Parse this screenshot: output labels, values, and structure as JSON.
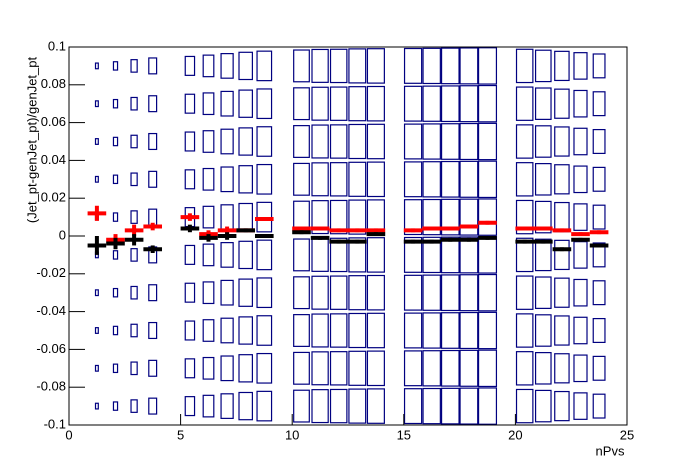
{
  "chart_data": {
    "type": "box-histogram",
    "xlabel": "nPvs",
    "ylabel": "(Jet_pt-genJet_pt)/genJet_pt",
    "xlim": [
      0,
      25
    ],
    "ylim": [
      -0.1,
      0.1
    ],
    "xticks": [
      0,
      5,
      10,
      15,
      20,
      25
    ],
    "yticks": [
      -0.1,
      -0.08,
      -0.06,
      -0.04,
      -0.02,
      0,
      0.02,
      0.04,
      0.06,
      0.08,
      0.1
    ],
    "box_color": "#000080",
    "xbins": [
      0,
      0.833,
      1.667,
      2.5,
      3.333,
      4.167,
      5,
      5.833,
      6.667,
      7.5,
      8.333,
      9.167,
      10,
      10.833,
      11.667,
      12.5,
      13.333,
      14.167,
      15,
      15.833,
      16.667,
      17.5,
      18.333,
      19.167,
      20,
      20.833,
      21.667,
      22.5,
      23.333,
      24.167,
      25
    ],
    "ybins": [
      -0.1,
      -0.08,
      -0.06,
      -0.04,
      -0.02,
      0,
      0.02,
      0.04,
      0.06,
      0.08,
      0.1
    ],
    "z": [
      [
        0,
        0.15,
        0.22,
        0.33,
        0.42,
        0,
        0.5,
        0.57,
        0.65,
        0.72,
        0.78,
        0,
        0.84,
        0.87,
        0.88,
        0.9,
        0.91,
        0,
        0.92,
        0.93,
        0.94,
        0.95,
        0.96,
        0,
        0.88,
        0.83,
        0.77,
        0.7,
        0.63,
        0
      ],
      [
        0,
        0.15,
        0.22,
        0.33,
        0.42,
        0,
        0.5,
        0.57,
        0.65,
        0.72,
        0.78,
        0,
        0.84,
        0.87,
        0.88,
        0.9,
        0.91,
        0,
        0.92,
        0.93,
        0.94,
        0.95,
        0.96,
        0,
        0.88,
        0.83,
        0.77,
        0.7,
        0.63,
        0
      ],
      [
        0,
        0.15,
        0.22,
        0.33,
        0.42,
        0,
        0.5,
        0.57,
        0.65,
        0.72,
        0.78,
        0,
        0.84,
        0.87,
        0.88,
        0.9,
        0.91,
        0,
        0.92,
        0.93,
        0.94,
        0.95,
        0.96,
        0,
        0.88,
        0.83,
        0.77,
        0.7,
        0.63,
        0
      ],
      [
        0,
        0.15,
        0.22,
        0.33,
        0.42,
        0,
        0.5,
        0.57,
        0.65,
        0.72,
        0.78,
        0,
        0.84,
        0.87,
        0.88,
        0.9,
        0.91,
        0,
        0.92,
        0.93,
        0.94,
        0.95,
        0.96,
        0,
        0.88,
        0.83,
        0.77,
        0.7,
        0.63,
        0
      ],
      [
        0,
        0.15,
        0.22,
        0.33,
        0.42,
        0,
        0.5,
        0.57,
        0.65,
        0.72,
        0.78,
        0,
        0.84,
        0.87,
        0.88,
        0.9,
        0.91,
        0,
        0.92,
        0.93,
        0.94,
        0.95,
        0.96,
        0,
        0.88,
        0.83,
        0.77,
        0.7,
        0.63,
        0
      ],
      [
        0,
        0.15,
        0.22,
        0.33,
        0.42,
        0,
        0.5,
        0.57,
        0.65,
        0.72,
        0.78,
        0,
        0.84,
        0.87,
        0.88,
        0.9,
        0.91,
        0,
        0.92,
        0.93,
        0.94,
        0.95,
        0.96,
        0,
        0.88,
        0.83,
        0.77,
        0.7,
        0.63,
        0
      ],
      [
        0,
        0.15,
        0.22,
        0.33,
        0.42,
        0,
        0.5,
        0.57,
        0.65,
        0.72,
        0.78,
        0,
        0.84,
        0.87,
        0.88,
        0.9,
        0.91,
        0,
        0.92,
        0.93,
        0.94,
        0.95,
        0.96,
        0,
        0.88,
        0.83,
        0.77,
        0.7,
        0.63,
        0
      ],
      [
        0,
        0.15,
        0.22,
        0.33,
        0.42,
        0,
        0.5,
        0.57,
        0.65,
        0.72,
        0.78,
        0,
        0.84,
        0.87,
        0.88,
        0.9,
        0.91,
        0,
        0.92,
        0.93,
        0.94,
        0.95,
        0.96,
        0,
        0.88,
        0.83,
        0.77,
        0.7,
        0.63,
        0
      ],
      [
        0,
        0.15,
        0.22,
        0.33,
        0.42,
        0,
        0.5,
        0.57,
        0.65,
        0.72,
        0.78,
        0,
        0.84,
        0.87,
        0.88,
        0.9,
        0.91,
        0,
        0.92,
        0.93,
        0.94,
        0.95,
        0.96,
        0,
        0.88,
        0.83,
        0.77,
        0.7,
        0.63,
        0
      ],
      [
        0,
        0.15,
        0.22,
        0.33,
        0.42,
        0,
        0.5,
        0.57,
        0.65,
        0.72,
        0.78,
        0,
        0.84,
        0.87,
        0.88,
        0.9,
        0.91,
        0,
        0.92,
        0.93,
        0.94,
        0.95,
        0.96,
        0,
        0.88,
        0.83,
        0.77,
        0.7,
        0.63,
        0
      ]
    ],
    "xerr": 0.417,
    "x": [
      1.25,
      2.083,
      2.917,
      3.75,
      5.417,
      6.25,
      7.083,
      7.917,
      8.75,
      10.417,
      11.25,
      12.083,
      12.917,
      13.75,
      15.417,
      16.25,
      17.083,
      17.917,
      18.75,
      20.417,
      21.25,
      22.083,
      22.917,
      23.75
    ],
    "series": [
      {
        "color": "#ff0000",
        "values": [
          0.012,
          -0.002,
          0.003,
          0.005,
          0.01,
          0.001,
          0.003,
          0.003,
          0.009,
          0.004,
          0.004,
          0.003,
          0.003,
          0.003,
          0.003,
          0.004,
          0.004,
          0.005,
          0.007,
          0.004,
          0.004,
          0.003,
          0.001,
          0.002
        ],
        "errors": [
          0.004,
          0.003,
          0.003,
          0.002,
          0.002,
          0.002,
          0.002,
          0.001,
          0.001,
          0.001,
          0.001,
          0.001,
          0.001,
          0.001,
          0.001,
          0.001,
          0.001,
          0.001,
          0.001,
          0.001,
          0.001,
          0.001,
          0.001,
          0.001
        ]
      },
      {
        "color": "#000000",
        "values": [
          -0.005,
          -0.004,
          -0.002,
          -0.007,
          0.004,
          -0.001,
          0,
          0.003,
          0,
          0.002,
          -0.001,
          -0.003,
          -0.003,
          0.001,
          -0.003,
          -0.003,
          -0.002,
          -0.002,
          -0.001,
          -0.003,
          -0.003,
          -0.007,
          -0.002,
          -0.005
        ],
        "errors": [
          0.005,
          0.003,
          0.003,
          0.002,
          0.002,
          0.002,
          0.002,
          0.001,
          0.001,
          0.001,
          0.001,
          0.001,
          0.001,
          0.001,
          0.001,
          0.001,
          0.001,
          0.001,
          0.001,
          0.001,
          0.001,
          0.001,
          0.001,
          0.001
        ]
      }
    ]
  }
}
